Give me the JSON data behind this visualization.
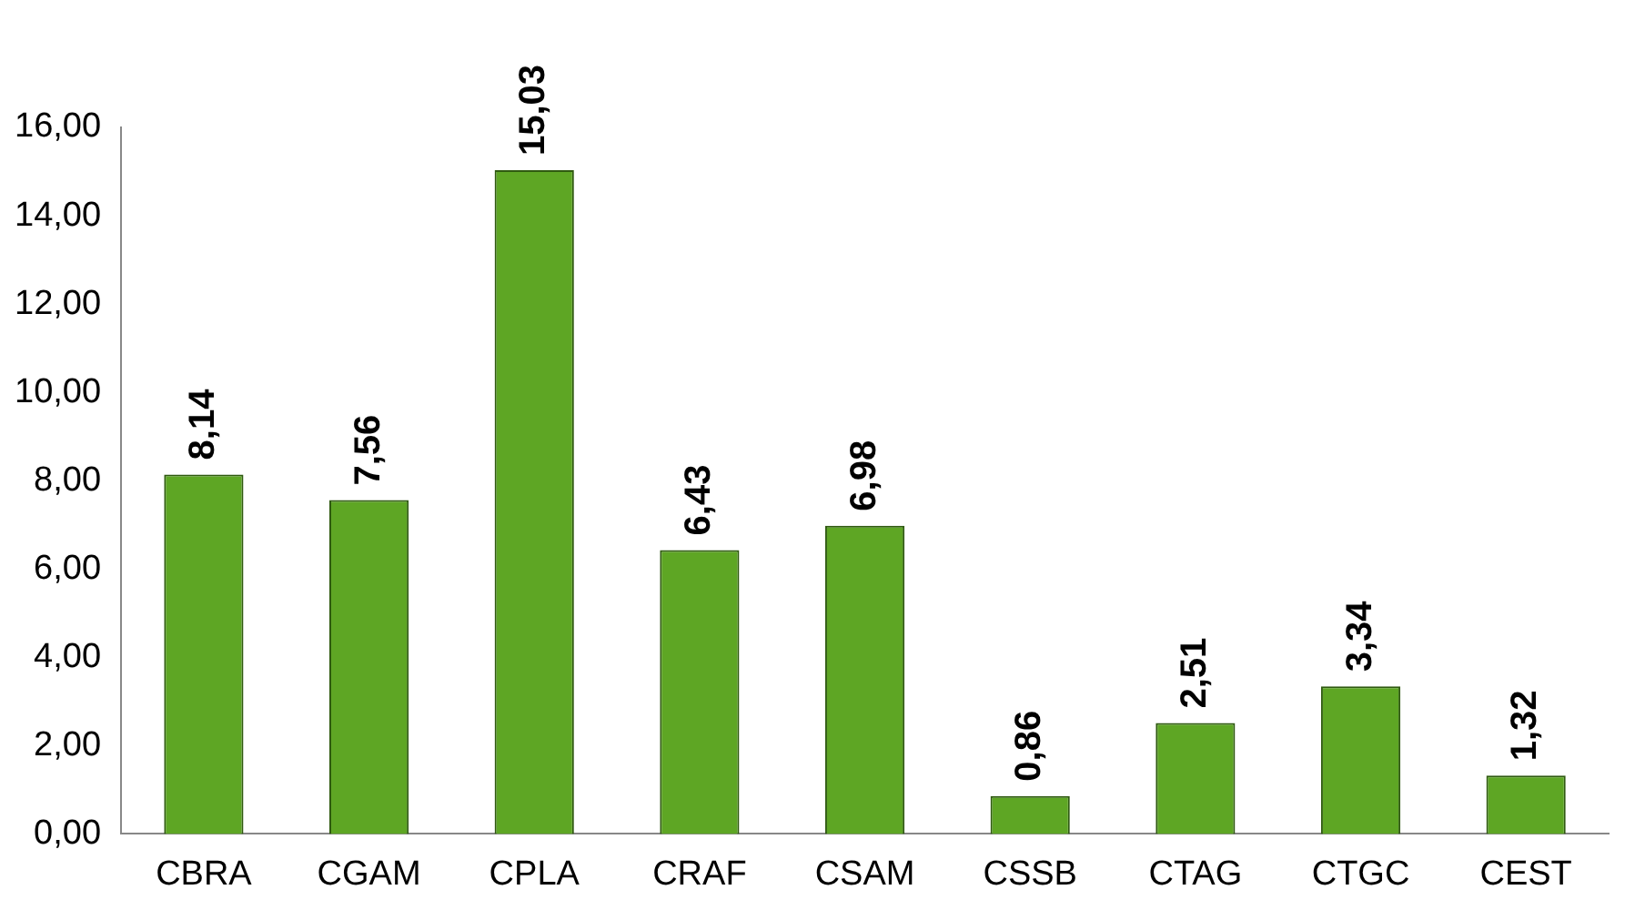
{
  "chart_data": {
    "type": "bar",
    "categories": [
      "CBRA",
      "CGAM",
      "CPLA",
      "CRAF",
      "CSAM",
      "CSSB",
      "CTAG",
      "CTGC",
      "CEST"
    ],
    "values": [
      8.14,
      7.56,
      15.03,
      6.43,
      6.98,
      0.86,
      2.51,
      3.34,
      1.32
    ],
    "value_labels": [
      "8,14",
      "7,56",
      "15,03",
      "6,43",
      "6,98",
      "0,86",
      "2,51",
      "3,34",
      "1,32"
    ],
    "color": "#5ea624",
    "ylim": [
      0,
      16
    ],
    "yticks": [
      {
        "value": 0,
        "label": "0,00"
      },
      {
        "value": 2,
        "label": "2,00"
      },
      {
        "value": 4,
        "label": "4,00"
      },
      {
        "value": 6,
        "label": "6,00"
      },
      {
        "value": 8,
        "label": "8,00"
      },
      {
        "value": 10,
        "label": "10,00"
      },
      {
        "value": 12,
        "label": "12,00"
      },
      {
        "value": 14,
        "label": "14,00"
      },
      {
        "value": 16,
        "label": "16,00"
      }
    ],
    "grid": false,
    "legend": false
  }
}
